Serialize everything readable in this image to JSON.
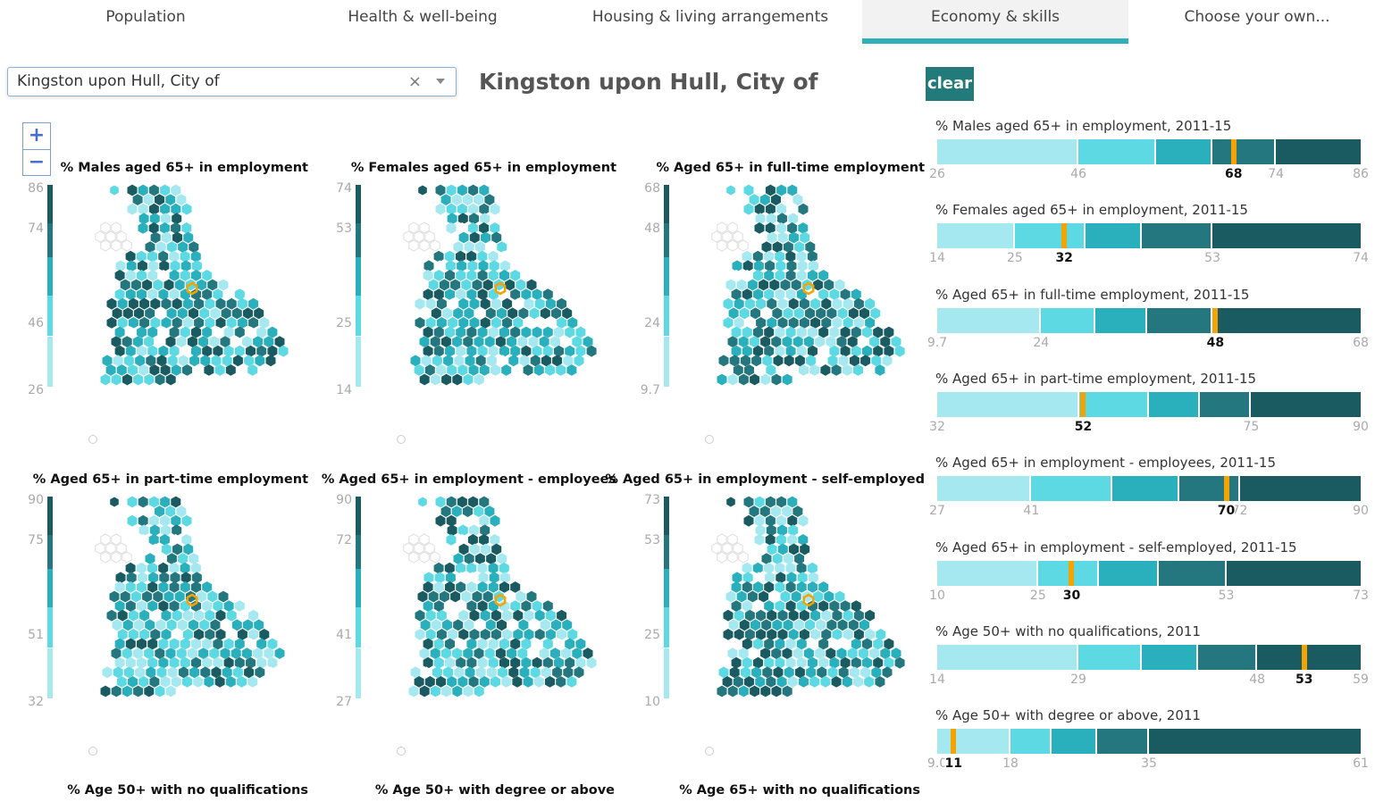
{
  "tabs": [
    {
      "label": "Population",
      "active": false
    },
    {
      "label": "Health & well-being",
      "active": false
    },
    {
      "label": "Housing & living arrangements",
      "active": false
    },
    {
      "label": "Economy & skills",
      "active": true
    },
    {
      "label": "Choose your own...",
      "active": false
    }
  ],
  "search": {
    "value": "Kingston upon Hull, City of",
    "clear_icon": "×"
  },
  "page_title": "Kingston upon Hull, City of",
  "clear_label": "clear",
  "zoom": {
    "in": "+",
    "out": "−"
  },
  "colors": [
    "#a6e8f0",
    "#5dd9e4",
    "#2ab0bd",
    "#24777e",
    "#1a5a61"
  ],
  "highlight_color": "#f5a300",
  "maps": [
    {
      "title": "% Males aged 65+ in employment",
      "legend": [
        "86",
        "74",
        "46",
        "26"
      ]
    },
    {
      "title": "% Females aged 65+ in employment",
      "legend": [
        "74",
        "53",
        "25",
        "14"
      ]
    },
    {
      "title": "% Aged 65+ in full-time employment",
      "legend": [
        "68",
        "48",
        "24",
        "9.7"
      ]
    },
    {
      "title": "% Aged 65+ in part-time employment",
      "legend": [
        "90",
        "75",
        "51",
        "32"
      ]
    },
    {
      "title": "% Aged 65+ in employment - employees",
      "legend": [
        "90",
        "72",
        "41",
        "27"
      ]
    },
    {
      "title": "% Aged 65+ in employment - self-employed",
      "legend": [
        "73",
        "53",
        "25",
        "10"
      ]
    }
  ],
  "bottom_titles": [
    "% Age 50+ with no qualifications",
    "% Age 50+ with degree or above",
    "% Age 65+ with no qualifications"
  ],
  "bars": [
    {
      "title": "% Males aged 65+ in employment, 2011-15",
      "min": 26,
      "max": 86,
      "breaks": [
        46,
        57,
        65,
        74
      ],
      "labels": [
        "26",
        "46",
        "74",
        "86"
      ],
      "label_values": [
        26,
        46,
        74,
        86
      ],
      "value": 68,
      "value_label": "68"
    },
    {
      "title": "% Females aged 65+ in employment, 2011-15",
      "min": 14,
      "max": 74,
      "breaks": [
        25,
        35,
        43,
        53
      ],
      "labels": [
        "14",
        "25",
        "53",
        "74"
      ],
      "label_values": [
        14,
        25,
        53,
        74
      ],
      "value": 32,
      "value_label": "32"
    },
    {
      "title": "% Aged 65+ in full-time employment, 2011-15",
      "min": 9.7,
      "max": 68,
      "breaks": [
        24,
        31.5,
        38.6,
        47.6
      ],
      "labels": [
        "9.7",
        "24",
        "68"
      ],
      "label_values": [
        9.7,
        24,
        68
      ],
      "value": 48,
      "value_label": "48"
    },
    {
      "title": "% Aged 65+ in part-time employment, 2011-15",
      "min": 32,
      "max": 90,
      "breaks": [
        51.5,
        61,
        68,
        75
      ],
      "labels": [
        "32",
        "75",
        "90"
      ],
      "label_values": [
        32,
        75,
        90
      ],
      "value": 52,
      "value_label": "52"
    },
    {
      "title": "% Aged 65+ in employment - employees, 2011-15",
      "min": 27,
      "max": 90,
      "breaks": [
        41,
        53,
        63,
        72
      ],
      "labels": [
        "27",
        "41",
        "72",
        "90"
      ],
      "label_values": [
        27,
        41,
        72,
        90
      ],
      "value": 70,
      "value_label": "70"
    },
    {
      "title": "% Aged 65+ in employment - self-employed, 2011-15",
      "min": 10,
      "max": 73,
      "breaks": [
        25,
        34,
        43,
        53
      ],
      "labels": [
        "10",
        "25",
        "53",
        "73"
      ],
      "label_values": [
        10,
        25,
        53,
        73
      ],
      "value": 30,
      "value_label": "30"
    },
    {
      "title": "% Age 50+ with no qualifications, 2011",
      "min": 14,
      "max": 59,
      "breaks": [
        29,
        35.7,
        41.7,
        48
      ],
      "labels": [
        "14",
        "29",
        "48",
        "59"
      ],
      "label_values": [
        14,
        29,
        48,
        59
      ],
      "value": 53,
      "value_label": "53"
    },
    {
      "title": "% Age 50+ with degree or above, 2011",
      "min": 9.0,
      "max": 61,
      "breaks": [
        18,
        23,
        28.6,
        35
      ],
      "labels": [
        "9.0",
        "18",
        "35",
        "61"
      ],
      "label_values": [
        9.0,
        18,
        35,
        61
      ],
      "value": 11,
      "value_label": "11"
    }
  ]
}
